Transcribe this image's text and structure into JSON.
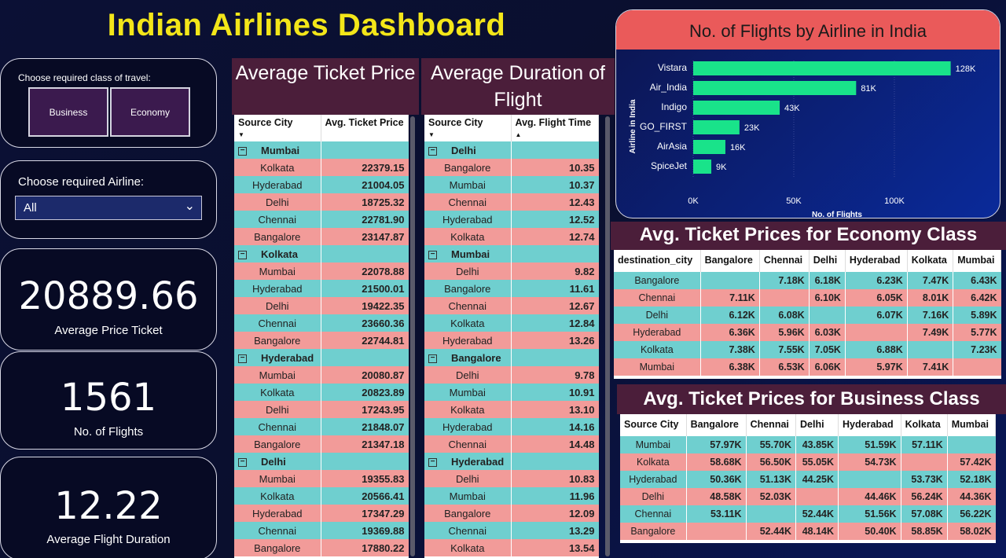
{
  "title": "Indian Airlines Dashboard",
  "class_filter": {
    "label": "Choose required class of travel:",
    "options": [
      "Business",
      "Economy"
    ]
  },
  "airline_filter": {
    "label": "Choose required Airline:",
    "selected": "All"
  },
  "kpis": {
    "avg_price": {
      "value": "20889.66",
      "label": "Average Price Ticket"
    },
    "flights": {
      "value": "1561",
      "label": "No. of Flights"
    },
    "duration": {
      "value": "12.22",
      "label": "Average Flight Duration"
    }
  },
  "price_table": {
    "title": "Average Ticket Price",
    "col_source": "Source City",
    "col_value": "Avg. Ticket Price",
    "groups": [
      {
        "name": "Mumbai",
        "rows": [
          [
            "Kolkata",
            "22379.15"
          ],
          [
            "Hyderabad",
            "21004.05"
          ],
          [
            "Delhi",
            "18725.32"
          ],
          [
            "Chennai",
            "22781.90"
          ],
          [
            "Bangalore",
            "23147.87"
          ]
        ]
      },
      {
        "name": "Kolkata",
        "rows": [
          [
            "Mumbai",
            "22078.88"
          ],
          [
            "Hyderabad",
            "21500.01"
          ],
          [
            "Delhi",
            "19422.35"
          ],
          [
            "Chennai",
            "23660.36"
          ],
          [
            "Bangalore",
            "22744.81"
          ]
        ]
      },
      {
        "name": "Hyderabad",
        "rows": [
          [
            "Mumbai",
            "20080.87"
          ],
          [
            "Kolkata",
            "20823.89"
          ],
          [
            "Delhi",
            "17243.95"
          ],
          [
            "Chennai",
            "21848.07"
          ],
          [
            "Bangalore",
            "21347.18"
          ]
        ]
      },
      {
        "name": "Delhi",
        "rows": [
          [
            "Mumbai",
            "19355.83"
          ],
          [
            "Kolkata",
            "20566.41"
          ],
          [
            "Hyderabad",
            "17347.29"
          ],
          [
            "Chennai",
            "19369.88"
          ],
          [
            "Bangalore",
            "17880.22"
          ]
        ]
      }
    ]
  },
  "duration_table": {
    "title": "Average Duration of Flight",
    "col_source": "Source City",
    "col_value": "Avg. Flight Time",
    "groups": [
      {
        "name": "Delhi",
        "rows": [
          [
            "Bangalore",
            "10.35"
          ],
          [
            "Mumbai",
            "10.37"
          ],
          [
            "Chennai",
            "12.43"
          ],
          [
            "Hyderabad",
            "12.52"
          ],
          [
            "Kolkata",
            "12.74"
          ]
        ]
      },
      {
        "name": "Mumbai",
        "rows": [
          [
            "Delhi",
            "9.82"
          ],
          [
            "Bangalore",
            "11.61"
          ],
          [
            "Chennai",
            "12.67"
          ],
          [
            "Kolkata",
            "12.84"
          ],
          [
            "Hyderabad",
            "13.26"
          ]
        ]
      },
      {
        "name": "Bangalore",
        "rows": [
          [
            "Delhi",
            "9.78"
          ],
          [
            "Mumbai",
            "10.91"
          ],
          [
            "Kolkata",
            "13.10"
          ],
          [
            "Hyderabad",
            "14.16"
          ],
          [
            "Chennai",
            "14.48"
          ]
        ]
      },
      {
        "name": "Hyderabad",
        "rows": [
          [
            "Delhi",
            "10.83"
          ],
          [
            "Mumbai",
            "11.96"
          ],
          [
            "Bangalore",
            "12.09"
          ],
          [
            "Chennai",
            "13.29"
          ],
          [
            "Kolkata",
            "13.54"
          ]
        ]
      }
    ]
  },
  "chart_data": {
    "type": "bar",
    "orientation": "horizontal",
    "title": "No. of Flights by Airline in India",
    "xlabel": "No. of Flights",
    "ylabel": "Airline in India",
    "categories": [
      "Vistara",
      "Air_India",
      "Indigo",
      "GO_FIRST",
      "AirAsia",
      "SpiceJet"
    ],
    "values": [
      128000,
      81000,
      43000,
      23000,
      16000,
      9000
    ],
    "data_labels": [
      "128K",
      "81K",
      "43K",
      "23K",
      "16K",
      "9K"
    ],
    "xticks": [
      "0K",
      "50K",
      "100K"
    ],
    "xlim": [
      0,
      130000
    ],
    "bar_color": "#19e38a"
  },
  "economy_matrix": {
    "title": "Avg. Ticket Prices for Economy Class",
    "columns": [
      "destination_city",
      "Bangalore",
      "Chennai",
      "Delhi",
      "Hyderabad",
      "Kolkata",
      "Mumbai"
    ],
    "rows": [
      [
        "Bangalore",
        "",
        "7.18K",
        "6.18K",
        "6.23K",
        "7.47K",
        "6.43K"
      ],
      [
        "Chennai",
        "7.11K",
        "",
        "6.10K",
        "6.05K",
        "8.01K",
        "6.42K"
      ],
      [
        "Delhi",
        "6.12K",
        "6.08K",
        "",
        "6.07K",
        "7.16K",
        "5.89K"
      ],
      [
        "Hyderabad",
        "6.36K",
        "5.96K",
        "6.03K",
        "",
        "7.49K",
        "5.77K"
      ],
      [
        "Kolkata",
        "7.38K",
        "7.55K",
        "7.05K",
        "6.88K",
        "",
        "7.23K"
      ],
      [
        "Mumbai",
        "6.38K",
        "6.53K",
        "6.06K",
        "5.97K",
        "7.41K",
        ""
      ]
    ]
  },
  "business_matrix": {
    "title": "Avg. Ticket Prices for Business Class",
    "columns": [
      "Source City",
      "Bangalore",
      "Chennai",
      "Delhi",
      "Hyderabad",
      "Kolkata",
      "Mumbai"
    ],
    "rows": [
      [
        "Mumbai",
        "57.97K",
        "55.70K",
        "43.85K",
        "51.59K",
        "57.11K",
        ""
      ],
      [
        "Kolkata",
        "58.68K",
        "56.50K",
        "55.05K",
        "54.73K",
        "",
        "57.42K"
      ],
      [
        "Hyderabad",
        "50.36K",
        "51.13K",
        "44.25K",
        "",
        "53.73K",
        "52.18K"
      ],
      [
        "Delhi",
        "48.58K",
        "52.03K",
        "",
        "44.46K",
        "56.24K",
        "44.36K"
      ],
      [
        "Chennai",
        "53.11K",
        "",
        "52.44K",
        "51.56K",
        "57.08K",
        "56.22K"
      ],
      [
        "Bangalore",
        "",
        "52.44K",
        "48.14K",
        "50.40K",
        "58.85K",
        "58.02K"
      ]
    ]
  },
  "colors": {
    "teal": "#6fcfcf",
    "pink": "#f29b99",
    "header": "#4b1e3a",
    "title": "#f3e619"
  }
}
